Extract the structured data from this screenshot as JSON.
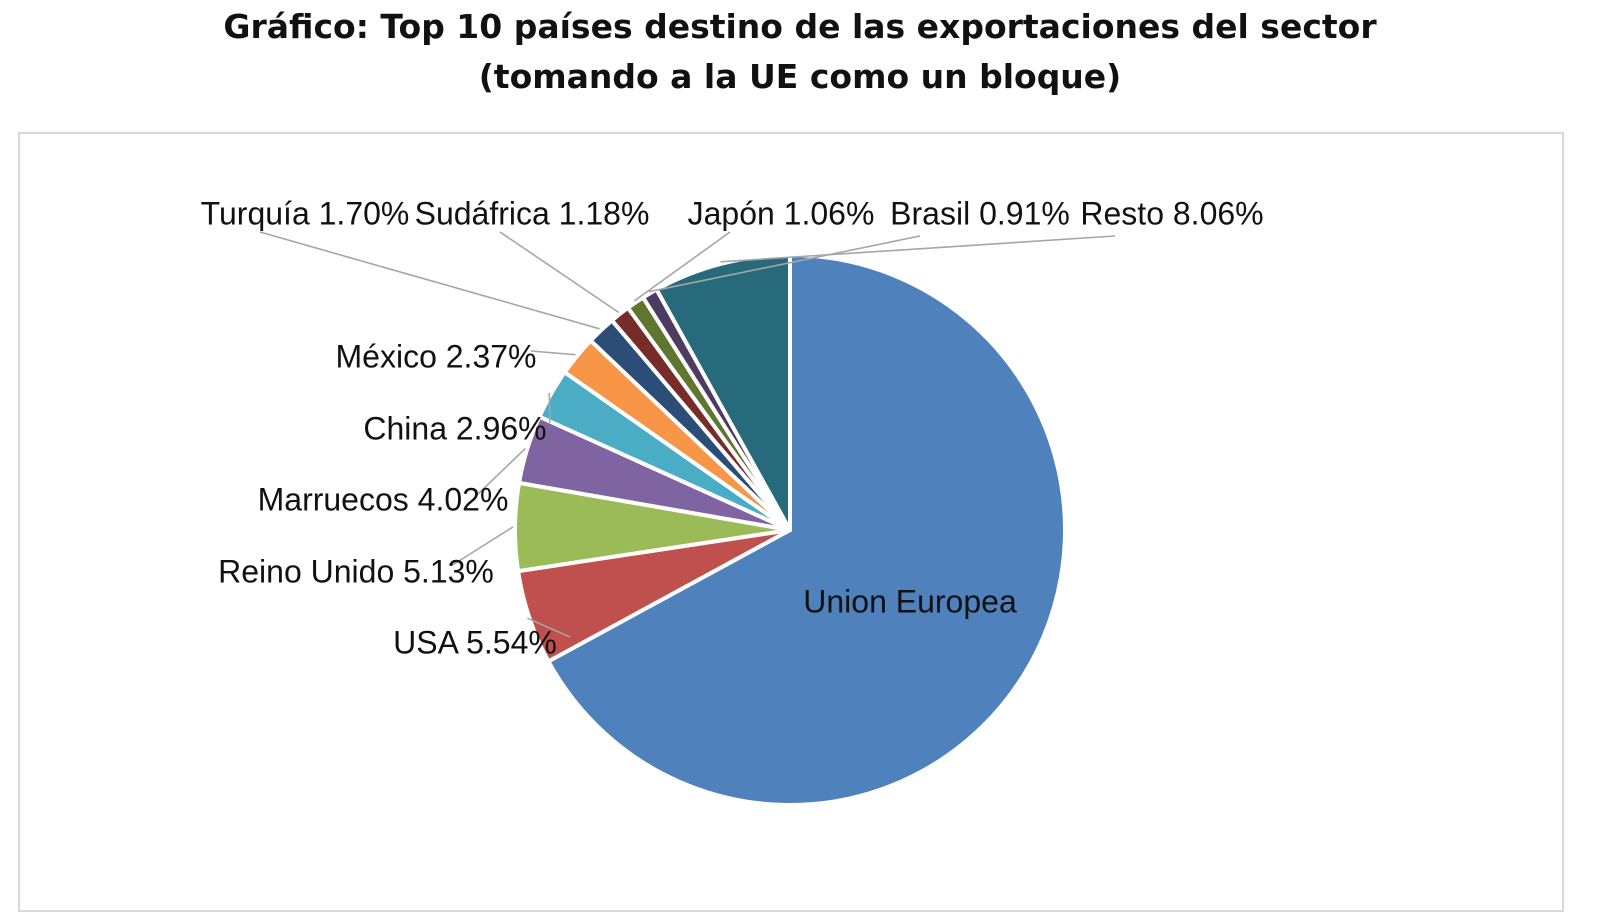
{
  "page": {
    "title_line1": "Gráfico: Top 10 países destino de las exportaciones del sector",
    "title_line2": "(tomando a la UE como un bloque)"
  },
  "chart_data": {
    "type": "pie",
    "title": "Gráfico: Top 10 países destino de las exportaciones del sector (tomando a la UE como un bloque)",
    "slices": [
      {
        "label": "Union Europea",
        "percent_label": "",
        "value": 67.08,
        "color": "#4F81BD"
      },
      {
        "label": "USA",
        "percent_label": "5.54%",
        "value": 5.54,
        "color": "#C0504D"
      },
      {
        "label": "Reino Unido",
        "percent_label": "5.13%",
        "value": 5.13,
        "color": "#9BBB59"
      },
      {
        "label": "Marruecos",
        "percent_label": "4.02%",
        "value": 4.02,
        "color": "#8064A2"
      },
      {
        "label": "China",
        "percent_label": "2.96%",
        "value": 2.96,
        "color": "#4BACC6"
      },
      {
        "label": "México",
        "percent_label": "2.37%",
        "value": 2.37,
        "color": "#F79646"
      },
      {
        "label": "Turquía",
        "percent_label": "1.70%",
        "value": 1.7,
        "color": "#2C4D75"
      },
      {
        "label": "Sudáfrica",
        "percent_label": "1.18%",
        "value": 1.18,
        "color": "#772C2A"
      },
      {
        "label": "Japón",
        "percent_label": "1.06%",
        "value": 1.06,
        "color": "#5F7530"
      },
      {
        "label": "Brasil",
        "percent_label": "0.91%",
        "value": 0.91,
        "color": "#4D3B62"
      },
      {
        "label": "Resto",
        "percent_label": "8.06%",
        "value": 8.06,
        "color": "#276A7C"
      }
    ],
    "legend": "none"
  }
}
